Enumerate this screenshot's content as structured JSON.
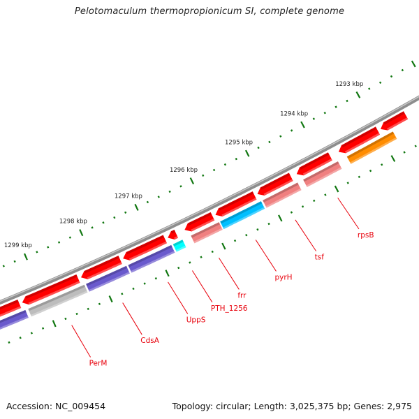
{
  "title": "Pelotomaculum thermopropionicum SI, complete genome",
  "footer": {
    "accession": "Accession: NC_009454",
    "summary": "Topology: circular; Length: 3,025,375 bp; Genes: 2,975"
  },
  "colors": {
    "backbone": "#888888",
    "cds": "#ff0000",
    "tick": "#117711",
    "label": "#e8000b",
    "purple": "#6a5acd",
    "gray": "#bdbdbd",
    "cyan": "#00ffff",
    "blue": "#00bfff",
    "pink": "#f08080",
    "orange": "#ff8c00"
  },
  "ticks": {
    "major_kbp": [
      1299,
      1298,
      1297,
      1296,
      1295,
      1294,
      1293
    ],
    "major_labels": [
      "1299 kbp",
      "1298 kbp",
      "1297 kbp",
      "1296 kbp",
      "1295 kbp",
      "1294 kbp",
      "1293 kbp"
    ],
    "minor_step_kbp": 0.1
  },
  "cds_track": [
    {
      "start": 1299.4,
      "end": 1299.9
    },
    {
      "start": 1298.35,
      "end": 1299.35
    },
    {
      "start": 1297.6,
      "end": 1298.3
    },
    {
      "start": 1296.8,
      "end": 1297.55
    },
    {
      "start": 1296.6,
      "end": 1296.75
    },
    {
      "start": 1295.95,
      "end": 1296.45
    },
    {
      "start": 1295.2,
      "end": 1295.9
    },
    {
      "start": 1294.55,
      "end": 1295.15
    },
    {
      "start": 1293.85,
      "end": 1294.45
    },
    {
      "start": 1293.0,
      "end": 1293.7
    },
    {
      "start": 1292.5,
      "end": 1292.95
    }
  ],
  "feature_track": [
    {
      "start": 1299.35,
      "end": 1299.9,
      "color": "purple"
    },
    {
      "start": 1298.3,
      "end": 1299.3,
      "color": "gray"
    },
    {
      "start": 1297.55,
      "end": 1298.27,
      "color": "purple"
    },
    {
      "start": 1296.75,
      "end": 1297.52,
      "color": "purple"
    },
    {
      "start": 1296.55,
      "end": 1296.72,
      "color": "cyan"
    },
    {
      "start": 1295.9,
      "end": 1296.4,
      "color": "pink"
    },
    {
      "start": 1295.15,
      "end": 1295.88,
      "color": "blue"
    },
    {
      "start": 1294.5,
      "end": 1295.12,
      "color": "pink"
    },
    {
      "start": 1293.78,
      "end": 1294.4,
      "color": "pink"
    },
    {
      "start": 1292.8,
      "end": 1293.62,
      "color": "orange"
    }
  ],
  "gene_labels": [
    {
      "name": "PerM",
      "kbp": 1298.75
    },
    {
      "name": "CdsA",
      "kbp": 1297.85
    },
    {
      "name": "UppS",
      "kbp": 1297.05
    },
    {
      "name": "PTH_1256",
      "kbp": 1296.62
    },
    {
      "name": "frr",
      "kbp": 1296.15
    },
    {
      "name": "pyrH",
      "kbp": 1295.5
    },
    {
      "name": "tsf",
      "kbp": 1294.8
    },
    {
      "name": "rpsB",
      "kbp": 1294.05
    }
  ]
}
